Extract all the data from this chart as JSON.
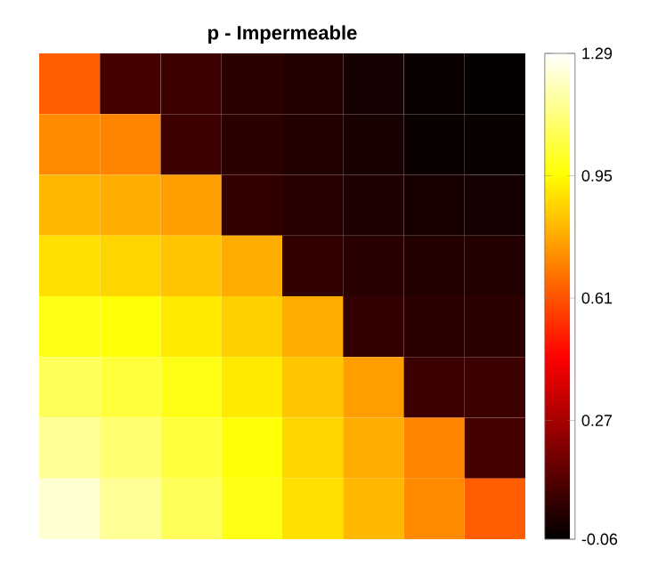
{
  "chart_data": {
    "type": "heatmap",
    "title": "p - Impermeable",
    "categories": [
      null,
      null,
      null,
      null,
      null,
      null,
      null,
      null
    ],
    "y_categories": [
      null,
      null,
      null,
      null,
      null,
      null,
      null,
      null
    ],
    "cells": [
      [
        0.63,
        0.08,
        0.06,
        0.03,
        0.01,
        -0.02,
        -0.04,
        -0.05
      ],
      [
        0.72,
        0.71,
        0.06,
        0.03,
        0.01,
        -0.01,
        -0.04,
        -0.04
      ],
      [
        0.81,
        0.79,
        0.76,
        0.04,
        0.02,
        0.0,
        -0.01,
        -0.02
      ],
      [
        0.89,
        0.87,
        0.84,
        0.79,
        0.04,
        0.02,
        0.01,
        0.01
      ],
      [
        0.98,
        0.96,
        0.91,
        0.86,
        0.79,
        0.04,
        0.03,
        0.03
      ],
      [
        1.07,
        1.03,
        0.98,
        0.91,
        0.84,
        0.76,
        0.06,
        0.06
      ],
      [
        1.15,
        1.1,
        1.03,
        0.96,
        0.87,
        0.79,
        0.71,
        0.08
      ],
      [
        1.23,
        1.15,
        1.07,
        0.98,
        0.89,
        0.81,
        0.72,
        0.63
      ]
    ],
    "clim": [
      -0.06,
      1.29
    ],
    "cticks": [
      -0.06,
      0.27,
      0.61,
      0.95,
      1.29
    ]
  }
}
